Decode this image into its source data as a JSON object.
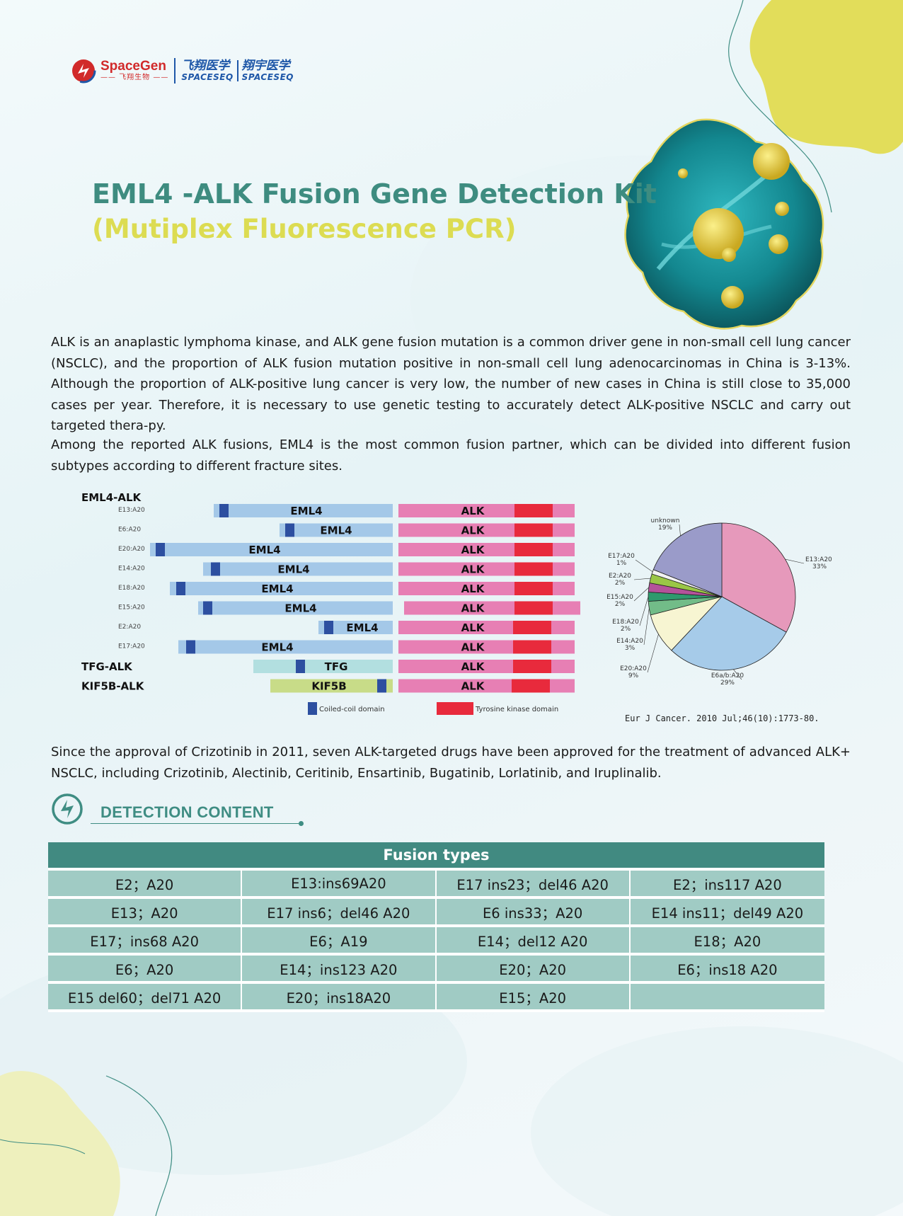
{
  "logo": {
    "brand_main": "SpaceGen",
    "brand_sub": "—— 飞翔生物 ——",
    "partner1_cn": "飞翔医学",
    "partner1_en": "SPACESEQ",
    "partner2_cn": "翔宇医学",
    "partner2_en": "SPACESEQ"
  },
  "title": "EML4 -ALK  Fusion Gene Detection Kit",
  "subtitle": "(Mutiplex Fluorescence PCR)",
  "intro_paragraph_1": "ALK is an anaplastic lymphoma kinase, and ALK gene fusion mutation is a common driver gene in non-small cell lung cancer (NSCLC), and the proportion of ALK fusion mutation positive in non-small cell lung adenocarcinomas in China is 3-13%. Although the proportion of ALK-positive lung cancer is very low, the number of new cases in China is still close to 35,000 cases per year. Therefore, it is necessary to use genetic testing to accurately detect ALK-positive NSCLC and carry out targeted thera-py.",
  "intro_paragraph_2": "Among the reported ALK fusions, EML4 is the most common fusion partner, which can be divided into different fusion subtypes according to different fracture sites.",
  "figure": {
    "group_eml4": "EML4-ALK",
    "fusion_rows": [
      {
        "sublabel": "E13:A20",
        "partner": "EML4",
        "partner_label": "EML4",
        "kinase_label": "ALK"
      },
      {
        "sublabel": "E6:A20",
        "partner": "EML4",
        "partner_label": "EML4",
        "kinase_label": "ALK"
      },
      {
        "sublabel": "E20:A20",
        "partner": "EML4",
        "partner_label": "EML4",
        "kinase_label": "ALK"
      },
      {
        "sublabel": "E14:A20",
        "partner": "EML4",
        "partner_label": "EML4",
        "kinase_label": "ALK"
      },
      {
        "sublabel": "E18:A20",
        "partner": "EML4",
        "partner_label": "EML4",
        "kinase_label": "ALK"
      },
      {
        "sublabel": "E15:A20",
        "partner": "EML4",
        "partner_label": "EML4",
        "kinase_label": "ALK"
      },
      {
        "sublabel": "E2:A20",
        "partner": "EML4",
        "partner_label": "EML4",
        "kinase_label": "ALK"
      },
      {
        "sublabel": "E17:A20",
        "partner": "EML4",
        "partner_label": "EML4",
        "kinase_label": "ALK"
      },
      {
        "group_label": "TFG-ALK",
        "partner": "TFG",
        "partner_label": "TFG",
        "kinase_label": "ALK"
      },
      {
        "group_label": "KIF5B-ALK",
        "partner": "KIF5B",
        "partner_label": "KIF5B",
        "kinase_label": "ALK"
      }
    ],
    "legend": {
      "coiled_coil": "Coiled-coil domain",
      "tyrosine_kinase": "Tyrosine kinase domain"
    },
    "colors": {
      "eml4": "#a4c8e8",
      "tfg": "#b2dfe0",
      "kif5b": "#c8dc88",
      "alk": "#e77fb4",
      "coiled_coil": "#2d4fa0",
      "kinase": "#e82a3c"
    }
  },
  "chart_data": {
    "type": "pie",
    "title": "",
    "slices": [
      {
        "label": "E13:A20",
        "pct_label": "33%",
        "value": 33,
        "color": "#e699bb"
      },
      {
        "label": "E6a/b:A20",
        "pct_label": "29%",
        "value": 29,
        "color": "#a6cbe9"
      },
      {
        "label": "E20:A20",
        "pct_label": "9%",
        "value": 9,
        "color": "#f7f5d2"
      },
      {
        "label": "E14:A20",
        "pct_label": "3%",
        "value": 3,
        "color": "#72bc88"
      },
      {
        "label": "E18:A20",
        "pct_label": "2%",
        "value": 2,
        "color": "#2f9a6d"
      },
      {
        "label": "E15:A20",
        "pct_label": "2%",
        "value": 2,
        "color": "#b4529a"
      },
      {
        "label": "E2:A20",
        "pct_label": "2%",
        "value": 2,
        "color": "#9ac646"
      },
      {
        "label": "E17:A20",
        "pct_label": "1%",
        "value": 1,
        "color": "#f2f2f2"
      },
      {
        "label": "unknown",
        "pct_label": "19%",
        "value": 19,
        "color": "#9a9bc9"
      }
    ],
    "citation": "Eur J Cancer. 2010 Jul;46(10):1773-80."
  },
  "paragraph_3": "Since the approval of Crizotinib in 2011, seven ALK-targeted drugs have been approved for the treatment of advanced ALK+ NSCLC, including Crizotinib, Alectinib, Ceritinib, Ensartinib, Bugatinib, Lorlatinib, and Iruplinalib.",
  "detection_heading": "DETECTION CONTENT",
  "table": {
    "header": "Fusion types",
    "rows": [
      [
        "E2；A20",
        "E13:ins69A20",
        "E17 ins23；del46 A20",
        "E2；ins117 A20"
      ],
      [
        "E13；A20",
        "E17 ins6；del46 A20",
        "E6 ins33；A20",
        "E14 ins11；del49 A20"
      ],
      [
        "E17；ins68 A20",
        "E6；A19",
        "E14；del12 A20",
        "E18；A20"
      ],
      [
        "E6；A20",
        "E14；ins123 A20",
        "E20；A20",
        "E6；ins18 A20"
      ],
      [
        "E15 del60；del71 A20",
        "E20；ins18A20",
        "E15；A20",
        ""
      ]
    ]
  }
}
